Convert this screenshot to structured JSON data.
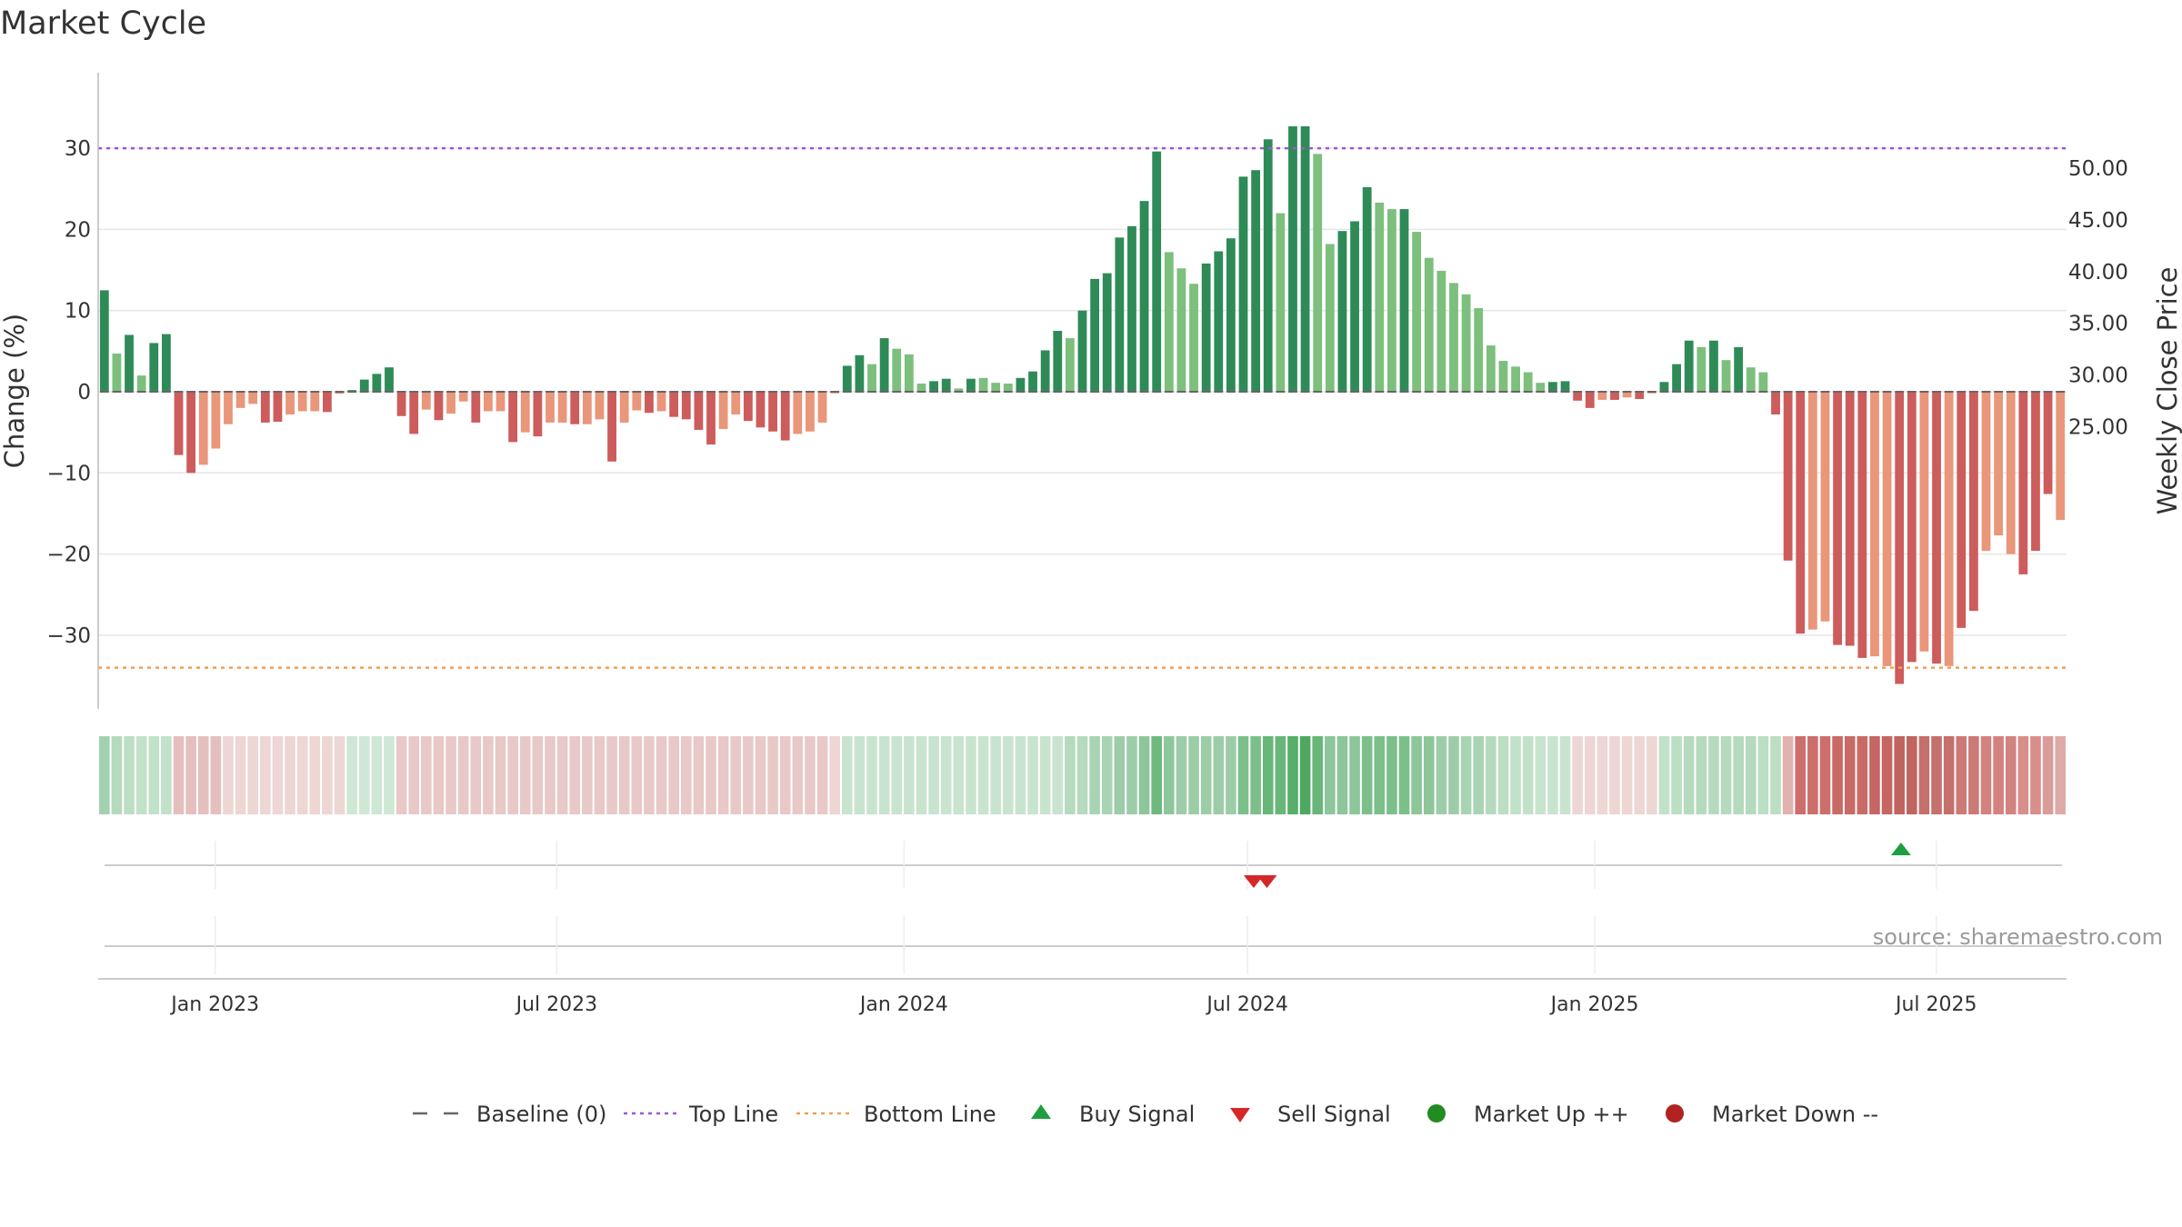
{
  "chart_data": {
    "type": "bar",
    "title": "Market Cycle",
    "ylabel": "Change (%)",
    "y2label": "Weekly Close Price",
    "source": "source: sharemaestro.com",
    "ylim": [
      -39,
      39
    ],
    "y2lim": [
      23.3,
      53.9
    ],
    "yticks": [
      30,
      20,
      10,
      0,
      -10,
      -20,
      -30
    ],
    "yticklabels": [
      "30",
      "20",
      "10",
      "0",
      "−10",
      "−20",
      "−30"
    ],
    "y2ticks": [
      50,
      45,
      40,
      35,
      30,
      25
    ],
    "y2ticklabels": [
      "50.00",
      "45.00",
      "40.00",
      "35.00",
      "30.00",
      "25.00"
    ],
    "xstart": "2022-10-31",
    "xend": "2025-09-08",
    "xticks": [
      {
        "date": "2023-01-01",
        "label": "Jan 2023"
      },
      {
        "date": "2023-07-01",
        "label": "Jul 2023"
      },
      {
        "date": "2024-01-01",
        "label": "Jan 2024"
      },
      {
        "date": "2024-07-01",
        "label": "Jul 2024"
      },
      {
        "date": "2025-01-01",
        "label": "Jan 2025"
      },
      {
        "date": "2025-07-01",
        "label": "Jul 2025"
      }
    ],
    "grid": true,
    "top_line": 30,
    "bottom_line": -34,
    "start_date": "2022-10-31",
    "values": [
      12.5,
      4.7,
      7,
      2,
      6,
      7.1,
      -7.8,
      -10,
      -9,
      -7,
      -4,
      -2,
      -1.5,
      -3.8,
      -3.7,
      -2.8,
      -2.4,
      -2.4,
      -2.5,
      -0.2,
      0.2,
      1.5,
      2.2,
      3,
      -3,
      -5.2,
      -2.2,
      -3.5,
      -2.7,
      -1.2,
      -3.8,
      -2.4,
      -2.4,
      -6.2,
      -5,
      -5.5,
      -3.8,
      -3.8,
      -4,
      -4,
      -3.4,
      -8.6,
      -3.8,
      -2.3,
      -2.6,
      -2.4,
      -3.1,
      -3.4,
      -4.7,
      -6.5,
      -4.6,
      -2.8,
      -3.6,
      -4.4,
      -4.9,
      -6,
      -5.2,
      -4.9,
      -3.8,
      -0.2,
      3.2,
      4.5,
      3.4,
      6.6,
      5.3,
      4.6,
      1,
      1.3,
      1.6,
      0.4,
      1.6,
      1.7,
      1.1,
      1,
      1.7,
      2.5,
      5.1,
      7.5,
      6.6,
      10,
      13.9,
      14.6,
      19,
      20.4,
      23.5,
      29.6,
      17.2,
      15.2,
      13.3,
      15.8,
      17.3,
      18.9,
      26.5,
      27.3,
      31.1,
      22,
      32.7,
      32.7,
      29.3,
      18.2,
      19.8,
      21,
      25.2,
      23.3,
      22.5,
      22.5,
      19.7,
      16.5,
      14.9,
      13.4,
      12,
      10.3,
      5.7,
      3.8,
      3.1,
      2.4,
      1.1,
      1.2,
      1.3,
      -1.1,
      -2,
      -1,
      -1,
      -0.7,
      -0.9,
      -0.2,
      1.2,
      3.4,
      6.3,
      5.5,
      6.3,
      3.9,
      5.5,
      3,
      2.4,
      -2.8,
      -20.8,
      -29.8,
      -29.3,
      -28.3,
      -31.2,
      -31.3,
      -32.8,
      -32.6,
      -33.8,
      -36,
      -33.3,
      -32,
      -33.5,
      -33.8,
      -29.1,
      -27,
      -19.6,
      -17.7,
      -20,
      -22.5,
      -19.6,
      -12.6,
      -15.8
    ],
    "bar_styles": [
      "dg",
      "lg",
      "dg",
      "lg",
      "dg",
      "dg",
      "dr",
      "dr",
      "lr",
      "lr",
      "lr",
      "lr",
      "lr",
      "dr",
      "dr",
      "lr",
      "lr",
      "lr",
      "dr",
      "dr",
      "dg",
      "dg",
      "dg",
      "dg",
      "dr",
      "dr",
      "lr",
      "dr",
      "lr",
      "lr",
      "dr",
      "lr",
      "lr",
      "dr",
      "lr",
      "dr",
      "lr",
      "lr",
      "dr",
      "lr",
      "lr",
      "dr",
      "lr",
      "lr",
      "dr",
      "lr",
      "dr",
      "dr",
      "dr",
      "dr",
      "lr",
      "lr",
      "dr",
      "dr",
      "dr",
      "dr",
      "lr",
      "lr",
      "lr",
      "lr",
      "dg",
      "dg",
      "lg",
      "dg",
      "lg",
      "lg",
      "lg",
      "dg",
      "dg",
      "lg",
      "dg",
      "lg",
      "lg",
      "lg",
      "dg",
      "dg",
      "dg",
      "dg",
      "lg",
      "dg",
      "dg",
      "dg",
      "dg",
      "dg",
      "dg",
      "dg",
      "lg",
      "lg",
      "lg",
      "dg",
      "dg",
      "dg",
      "dg",
      "dg",
      "dg",
      "lg",
      "dg",
      "dg",
      "lg",
      "lg",
      "dg",
      "dg",
      "dg",
      "lg",
      "lg",
      "dg",
      "lg",
      "lg",
      "lg",
      "lg",
      "lg",
      "lg",
      "lg",
      "lg",
      "lg",
      "lg",
      "lg",
      "dg",
      "dg",
      "dr",
      "dr",
      "lr",
      "dr",
      "lr",
      "dr",
      "lr",
      "dg",
      "dg",
      "dg",
      "lg",
      "dg",
      "lg",
      "dg",
      "lg",
      "lg",
      "dr",
      "dr",
      "dr",
      "lr",
      "lr",
      "dr",
      "dr",
      "dr",
      "lr",
      "lr",
      "dr",
      "dr",
      "lr",
      "dr",
      "lr",
      "dr",
      "dr",
      "lr",
      "lr",
      "lr",
      "dr",
      "dr",
      "dr",
      "lr",
      "dr"
    ],
    "heat_strip": [
      "#a3d1af",
      "#b5dabd",
      "#bcdec3",
      "#c2e1c9",
      "#c2e1c9",
      "#c2e1c9",
      "#e5bfbd",
      "#e5bfbd",
      "#e5bfbd",
      "#e5bfbd",
      "#edd6d4",
      "#edd6d4",
      "#edd6d4",
      "#edd6d4",
      "#edd6d4",
      "#edd6d4",
      "#edd6d4",
      "#edd6d4",
      "#edd6d4",
      "#edd6d4",
      "#cfe7d5",
      "#cfe7d5",
      "#cfe7d5",
      "#cfe7d5",
      "#e8c9c7",
      "#e8c9c7",
      "#e8c9c7",
      "#e8c9c7",
      "#e8c9c7",
      "#e8c9c7",
      "#e8c9c7",
      "#e8c9c7",
      "#e8c9c7",
      "#e8c9c7",
      "#e8c9c7",
      "#e8c9c7",
      "#e8c9c7",
      "#e8c9c7",
      "#e8c9c7",
      "#e8c9c7",
      "#e8c9c7",
      "#e8c9c7",
      "#e8c9c7",
      "#e8c9c7",
      "#e8c9c7",
      "#e8c9c7",
      "#e8c9c7",
      "#e8c9c7",
      "#e8c9c7",
      "#e8c9c7",
      "#e8c9c7",
      "#e8c9c7",
      "#e8c9c7",
      "#e8c9c7",
      "#e8c9c7",
      "#e8c9c7",
      "#e8c9c7",
      "#e8c9c7",
      "#e8c9c7",
      "#edd6d4",
      "#c8e4ce",
      "#c8e4ce",
      "#c8e4ce",
      "#c8e4ce",
      "#c8e4ce",
      "#c8e4ce",
      "#c8e4ce",
      "#c8e4ce",
      "#c8e4ce",
      "#c8e4ce",
      "#c8e4ce",
      "#c8e4ce",
      "#c8e4ce",
      "#c8e4ce",
      "#c8e4ce",
      "#c8e4ce",
      "#c8e4ce",
      "#c8e4ce",
      "#b5dabd",
      "#b5dabd",
      "#a9d4b4",
      "#a9d4b4",
      "#9ccda8",
      "#9ccda8",
      "#8cc69a",
      "#6fb97f",
      "#8fc79c",
      "#9ccda8",
      "#9ccda8",
      "#9ccda8",
      "#9ccda8",
      "#9ccda8",
      "#7cbf8b",
      "#7cbf8b",
      "#68b679",
      "#68b679",
      "#58ae6a",
      "#4ea862",
      "#68b679",
      "#8cc69a",
      "#8cc69a",
      "#8cc69a",
      "#7cbf8b",
      "#7cbf8b",
      "#7cbf8b",
      "#7cbf8b",
      "#8cc69a",
      "#8cc69a",
      "#9ccda8",
      "#9ccda8",
      "#a9d4b4",
      "#a9d4b4",
      "#b5dabd",
      "#bcdec3",
      "#c2e1c9",
      "#c2e1c9",
      "#c8e4ce",
      "#c8e4ce",
      "#c8e4ce",
      "#edd6d4",
      "#edd6d4",
      "#edd6d4",
      "#edd6d4",
      "#edd6d4",
      "#edd6d4",
      "#edd6d4",
      "#c2e1c9",
      "#bcdec3",
      "#b5dabd",
      "#b5dabd",
      "#b5dabd",
      "#b5dabd",
      "#b5dabd",
      "#b5dabd",
      "#bcdec3",
      "#bcdec3",
      "#e0b2b0",
      "#cc6e6b",
      "#cc6e6b",
      "#cc6e6b",
      "#c96a67",
      "#c96a67",
      "#c96a67",
      "#c66662",
      "#c66662",
      "#c06460",
      "#c06460",
      "#c4706c",
      "#c4706c",
      "#c4706c",
      "#cc7a76",
      "#cc7a76",
      "#d3837f",
      "#d3837f",
      "#d3837f",
      "#d88e8a",
      "#d88e8a",
      "#d99c99",
      "#ddaaa7"
    ],
    "sell_signals": [
      "2024-07-01",
      "2024-07-08"
    ],
    "buy_signals": [
      "2025-06-09"
    ],
    "colors": {
      "dark_green": "#2e8b57",
      "light_green": "#7dbf7d",
      "dark_red": "#cd5c5c",
      "light_red": "#e9967a",
      "top_line": "#9b59d0",
      "bottom_line": "#f0a050",
      "buy": "#1e9e40",
      "sell": "#d62728",
      "market_up": "#228b22",
      "market_down": "#b22222"
    },
    "legend": [
      {
        "label": "Baseline (0)",
        "marker": "baseline"
      },
      {
        "label": "Top Line",
        "marker": "top-line"
      },
      {
        "label": "Bottom Line",
        "marker": "bottom-line"
      },
      {
        "label": "Buy Signal",
        "marker": "buy"
      },
      {
        "label": "Sell Signal",
        "marker": "sell"
      },
      {
        "label": "Market Up ++",
        "marker": "up"
      },
      {
        "label": "Market Down --",
        "marker": "down"
      }
    ]
  }
}
